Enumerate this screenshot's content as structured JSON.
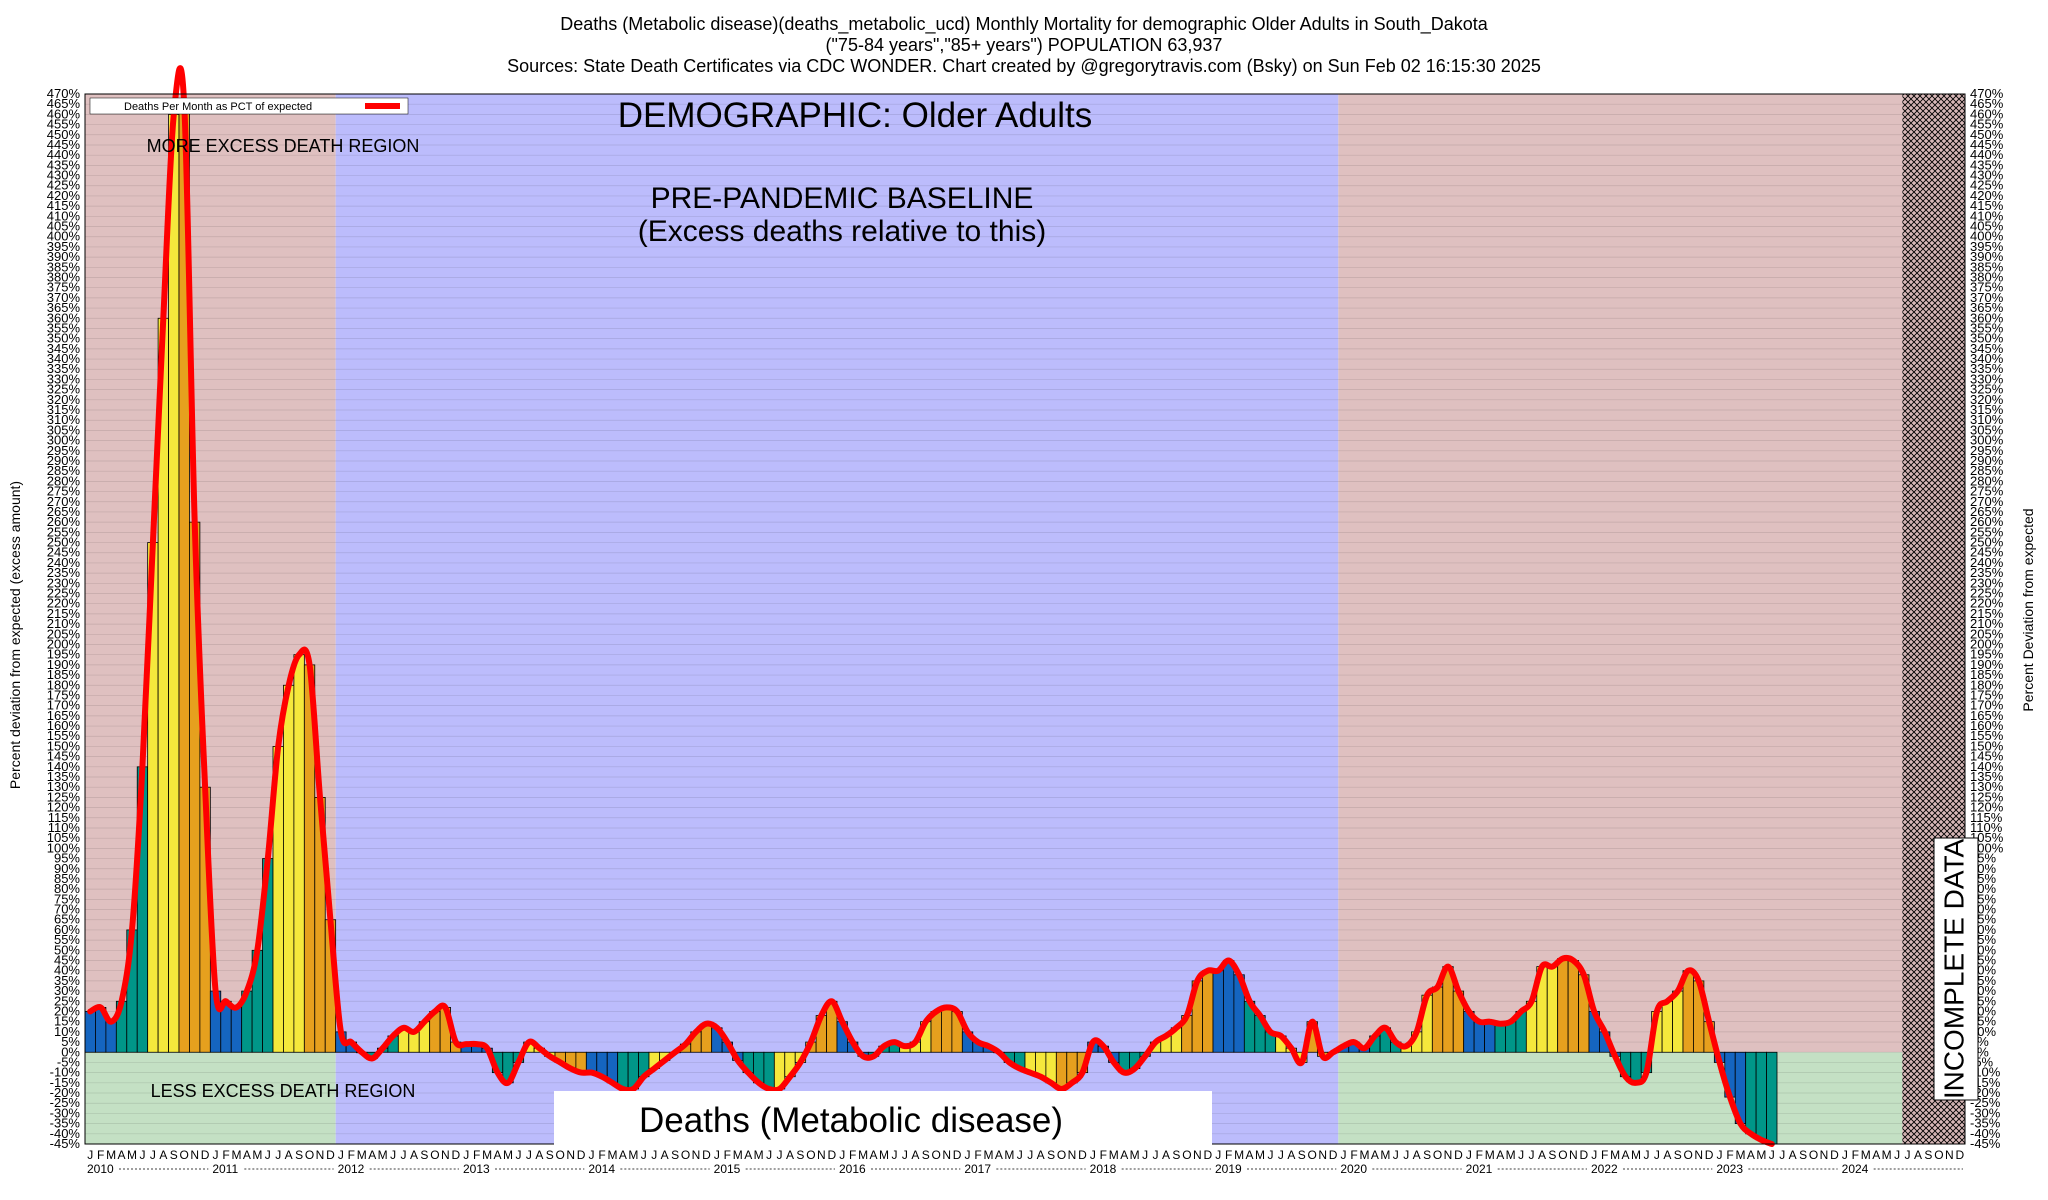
{
  "header": {
    "line1": "Deaths (Metabolic disease)(deaths_metabolic_ucd) Monthly Mortality for demographic Older Adults in South_Dakota",
    "line2": "(\"75-84 years\",\"85+ years\") POPULATION 63,937",
    "line3": "Sources: State Death Certificates via CDC WONDER.              Chart created by @gregorytravis.com (Bsky) on Sun Feb 02 16:15:30 2025"
  },
  "annotations": {
    "demographic": "DEMOGRAPHIC: Older Adults",
    "baseline_line1": "PRE-PANDEMIC BASELINE",
    "baseline_line2": "(Excess deaths relative to this)",
    "more_excess": "MORE EXCESS DEATH REGION",
    "less_excess": "LESS EXCESS DEATH REGION",
    "incomplete": "INCOMPLETE DATA",
    "bottom_title": "Deaths (Metabolic disease)"
  },
  "legend": {
    "label": "Deaths Per Month as PCT of expected",
    "position": "top-left"
  },
  "colors": {
    "excess_region": "#dfc0c0",
    "deficit_region": "#c4e0c4",
    "baseline_region": "#bcbcfc",
    "line": "#ff0000",
    "bar_palette": [
      "#1565c0",
      "#009688",
      "#f5e83c",
      "#e6a01e"
    ]
  },
  "chart_data": {
    "type": "bar",
    "title": "Deaths (Metabolic disease)(deaths_metabolic_ucd) Monthly Mortality for demographic Older Adults in South_Dakota",
    "ylabel_left": "Percent deviation from expected (excess amount)",
    "ylabel_right": "Percent Deviation from expected",
    "ylim": [
      -45,
      470
    ],
    "ytick_step": 5,
    "grid": true,
    "x_month_letters": [
      "J",
      "F",
      "M",
      "A",
      "M",
      "J",
      "J",
      "A",
      "S",
      "O",
      "N",
      "D"
    ],
    "years": [
      "2010",
      "2011",
      "2012",
      "2013",
      "2014",
      "2015",
      "2016",
      "2017",
      "2018",
      "2019",
      "2020",
      "2021",
      "2022",
      "2023",
      "2024"
    ],
    "baseline_period": [
      "2012-01",
      "2019-12"
    ],
    "incomplete_from": "2024-07",
    "series": [
      {
        "name": "Deaths Per Month as PCT of expected",
        "values": [
          20,
          22,
          15,
          25,
          60,
          140,
          250,
          360,
          460,
          465,
          260,
          130,
          30,
          25,
          22,
          30,
          50,
          95,
          150,
          180,
          195,
          190,
          125,
          65,
          10,
          5,
          0,
          -3,
          2,
          8,
          12,
          10,
          15,
          20,
          22,
          5,
          4,
          4,
          2,
          -10,
          -15,
          -5,
          5,
          2,
          -2,
          -5,
          -8,
          -10,
          -10,
          -12,
          -15,
          -18,
          -18,
          -12,
          -8,
          -4,
          0,
          4,
          10,
          14,
          12,
          5,
          -4,
          -10,
          -15,
          -18,
          -18,
          -12,
          -5,
          5,
          18,
          25,
          15,
          5,
          -2,
          -2,
          3,
          5,
          3,
          5,
          15,
          20,
          22,
          20,
          10,
          5,
          3,
          0,
          -5,
          -8,
          -10,
          -12,
          -15,
          -18,
          -15,
          -10,
          5,
          3,
          -5,
          -10,
          -8,
          -2,
          5,
          8,
          12,
          18,
          35,
          40,
          40,
          45,
          38,
          25,
          18,
          10,
          8,
          2,
          -5,
          15,
          -2,
          0,
          3,
          5,
          2,
          8,
          12,
          5,
          3,
          10,
          28,
          32,
          42,
          30,
          20,
          15,
          15,
          14,
          15,
          20,
          25,
          42,
          42,
          46,
          45,
          38,
          20,
          10,
          -2,
          -12,
          -15,
          -10,
          20,
          25,
          30,
          40,
          35,
          15,
          -5,
          -22,
          -35,
          -40,
          -43,
          -45
        ]
      }
    ]
  }
}
